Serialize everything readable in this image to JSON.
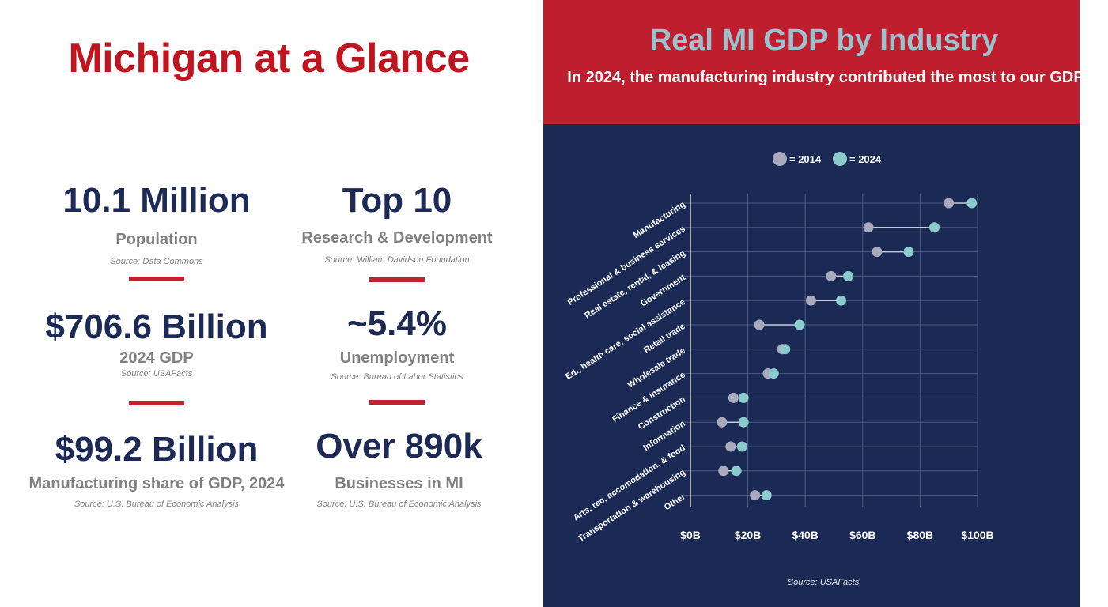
{
  "left": {
    "title": "Michigan at a Glance",
    "stats": [
      {
        "value": "10.1 Million",
        "label": "Population",
        "source": "Source: Data Commons"
      },
      {
        "value": "Top 10",
        "label": "Research & Development",
        "source": "Source: William Davidson Foundation"
      },
      {
        "value": "$706.6 Billion",
        "label": "2024 GDP",
        "source": "Source: USAFacts"
      },
      {
        "value": "~5.4%",
        "label": "Unemployment",
        "source": "Source: Bureau of Labor Statistics"
      },
      {
        "value": "$99.2 Billion",
        "label": "Manufacturing share of GDP, 2024",
        "source": "Source: U.S. Bureau of Economic Analysis"
      },
      {
        "value": "Over 890k",
        "label": "Businesses in MI",
        "source": "Source: U.S. Bureau of Economic Analysis"
      }
    ]
  },
  "right": {
    "source": "Source: USAFacts"
  },
  "colors": {
    "accent_red": "#c0151e",
    "navy": "#1b2a55",
    "color_2014": "#a9aabd",
    "color_2024": "#8ccbcc"
  },
  "chart_data": {
    "type": "dumbbell",
    "title": "Real MI GDP by Industry",
    "subtitle": "In 2024, the manufacturing industry contributed the most to our GDP",
    "legend": {
      "items": [
        "= 2014",
        "= 2024"
      ],
      "position": "top"
    },
    "categories": [
      "Manufacturing",
      "Professional & business services",
      "Real estate, rental, & leasing",
      "Government",
      "Ed., health care, social assistance",
      "Retail trade",
      "Wholesale trade",
      "Finance & insurance",
      "Construction",
      "Information",
      "Arts, rec, accomodation, & food",
      "Transportation & warehousing",
      "Other"
    ],
    "series": [
      {
        "name": "2014",
        "values": [
          90,
          62,
          65,
          49,
          42,
          24,
          32,
          27,
          15,
          11,
          14,
          11.5,
          22.5
        ]
      },
      {
        "name": "2024",
        "values": [
          98,
          85,
          76,
          55,
          52.5,
          38,
          33,
          29,
          18.5,
          18.5,
          18,
          16,
          26.5
        ]
      }
    ],
    "x_ticks": [
      "$0B",
      "$20B",
      "$40B",
      "$60B",
      "$80B",
      "$100B"
    ],
    "xlim": [
      0,
      100
    ],
    "unit": "billions of dollars",
    "grid": true
  }
}
